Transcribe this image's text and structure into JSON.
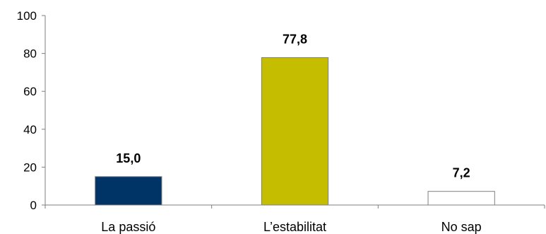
{
  "chart_data": {
    "type": "bar",
    "categories": [
      "La passió",
      "L’estabilitat",
      "No sap"
    ],
    "values": [
      15.0,
      77.8,
      7.2
    ],
    "data_labels": [
      "15,0",
      "77,8",
      "7,2"
    ],
    "bar_colors": [
      "#003366",
      "#c4bd00",
      "#ffffff"
    ],
    "bar_outline": "#7f7f7f",
    "ylim": [
      0,
      100
    ],
    "yticks": [
      0,
      20,
      40,
      60,
      80,
      100
    ],
    "ytick_labels": [
      "0",
      "20",
      "40",
      "60",
      "80",
      "100"
    ],
    "title": "",
    "xlabel": "",
    "ylabel": "",
    "grid": false,
    "legend": "none"
  }
}
